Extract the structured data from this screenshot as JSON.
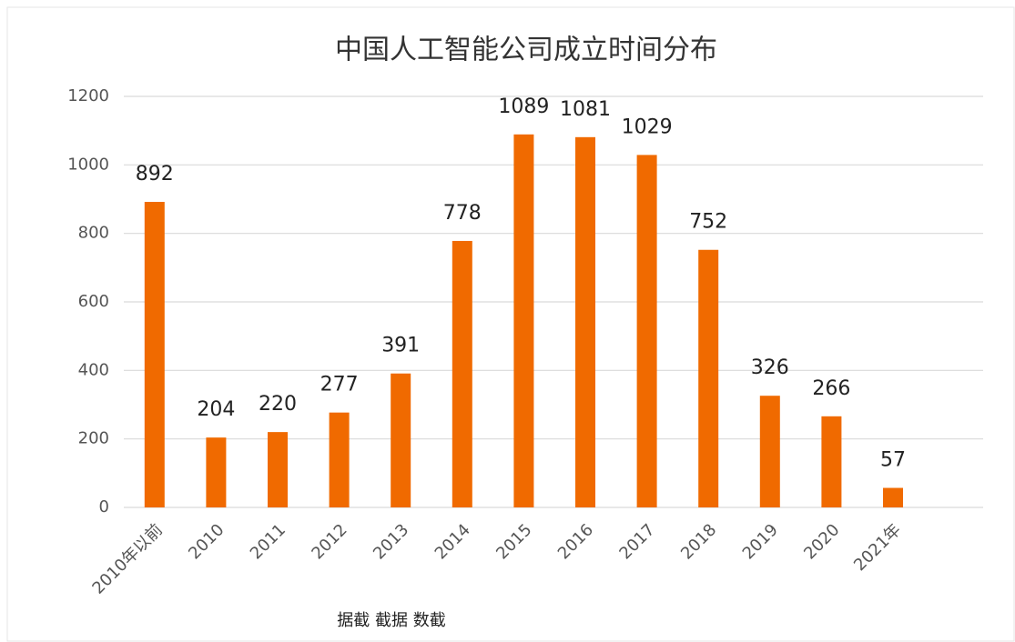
{
  "chart_data": {
    "type": "bar",
    "title": "中国人工智能公司成立时间分布",
    "categories": [
      "2010年以前",
      "2010",
      "2011",
      "2012",
      "2013",
      "2014",
      "2015",
      "2016",
      "2017",
      "2018",
      "2019",
      "2020",
      "2021年"
    ],
    "values": [
      892,
      204,
      220,
      277,
      391,
      778,
      1089,
      1081,
      1029,
      752,
      326,
      266,
      57
    ],
    "color": "#f06a00",
    "ylim": [
      0,
      1200
    ],
    "yticks": [
      0,
      200,
      400,
      600,
      800,
      1000,
      1200
    ],
    "grid": true,
    "footnote": "据截 截据 数截"
  }
}
